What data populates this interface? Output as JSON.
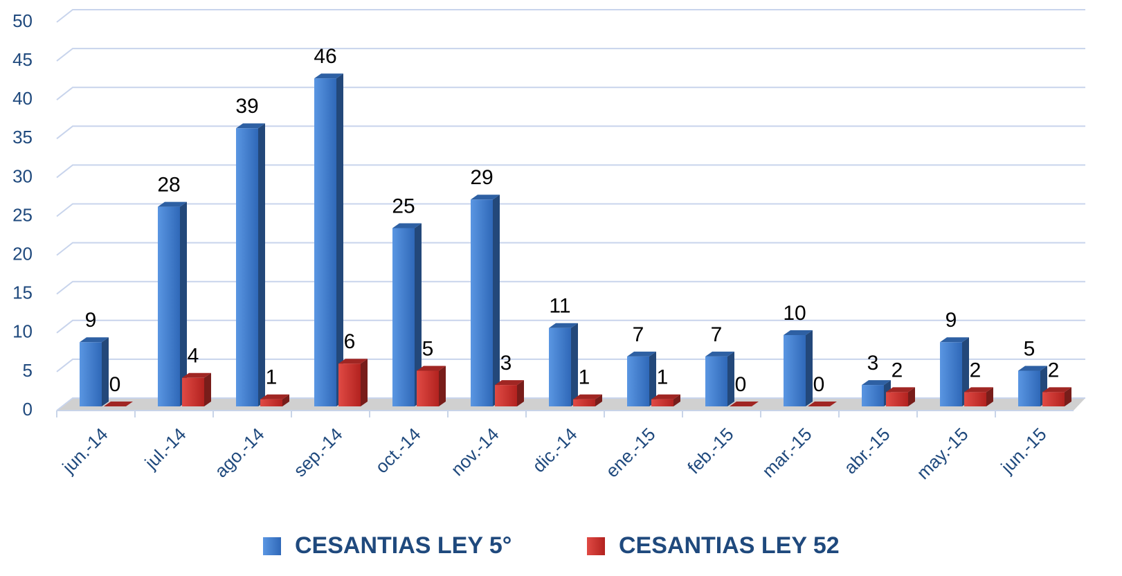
{
  "chart_data": {
    "type": "bar3d",
    "categories": [
      "jun.-14",
      "jul.-14",
      "ago.-14",
      "sep.-14",
      "oct.-14",
      "nov.-14",
      "dic.-14",
      "ene.-15",
      "feb.-15",
      "mar.-15",
      "abr.-15",
      "may.-15",
      "jun.-15"
    ],
    "series": [
      {
        "name": "CESANTIAS LEY 5°",
        "color": "#3a78cc",
        "values": [
          9,
          28,
          39,
          46,
          25,
          29,
          11,
          7,
          7,
          10,
          3,
          9,
          5
        ]
      },
      {
        "name": "CESANTIAS LEY 52",
        "color": "#c8302c",
        "values": [
          0,
          4,
          1,
          6,
          5,
          3,
          1,
          1,
          0,
          0,
          2,
          2,
          2
        ]
      }
    ],
    "ylim": [
      0,
      50
    ],
    "yticks": [
      0,
      5,
      10,
      15,
      20,
      25,
      30,
      35,
      40,
      45,
      50
    ],
    "grid": true,
    "legend": "bottom"
  }
}
